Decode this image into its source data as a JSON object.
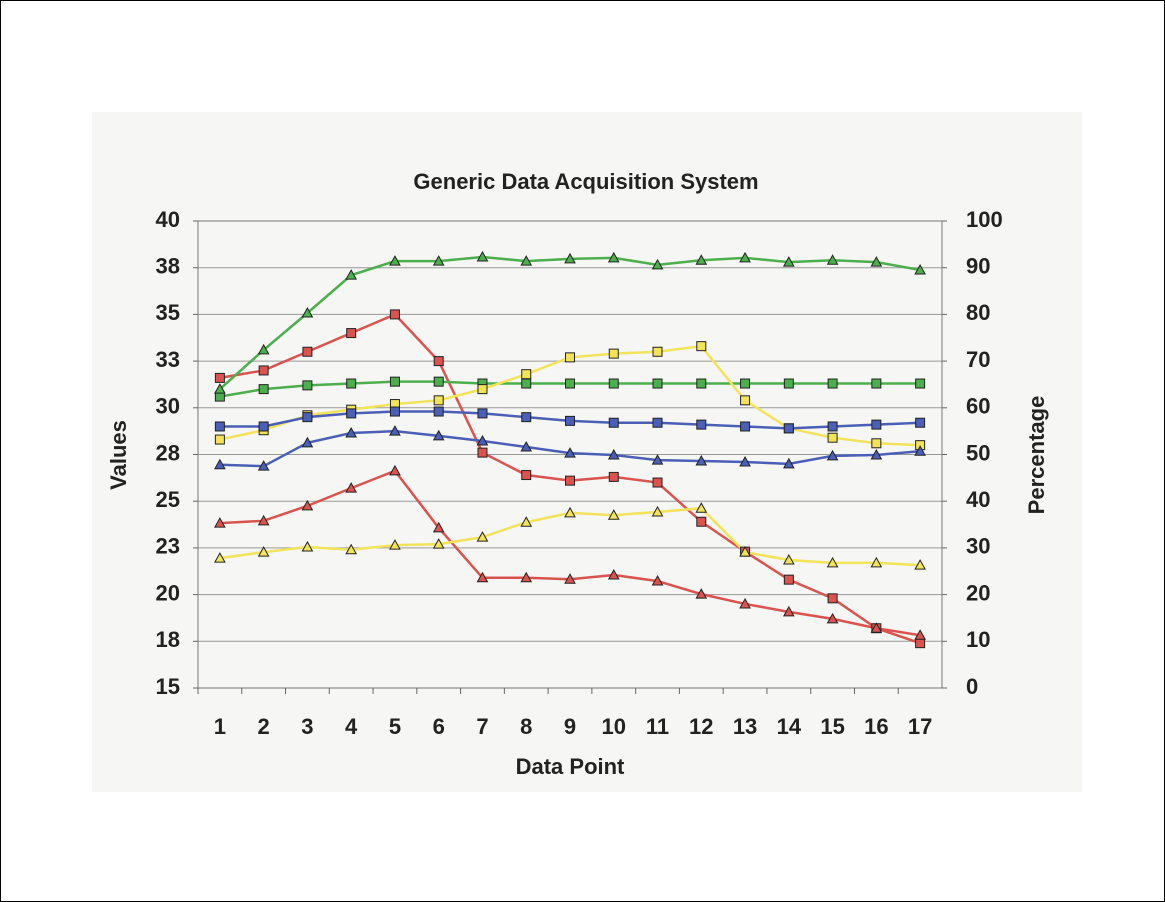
{
  "chart_data": {
    "type": "line",
    "title": "Generic Data Acquisition System",
    "x_label": "Data Point",
    "y_label": "Values",
    "y2_label": "Percentage",
    "categories": [
      "1",
      "2",
      "3",
      "4",
      "5",
      "6",
      "7",
      "8",
      "9",
      "10",
      "11",
      "12",
      "13",
      "14",
      "15",
      "16",
      "17"
    ],
    "ylim": [
      15,
      40
    ],
    "yticks": [
      15,
      {
        "value": 17.5,
        "label": "18"
      },
      20,
      {
        "value": 22.5,
        "label": "23"
      },
      25,
      {
        "value": 27.5,
        "label": "28"
      },
      30,
      {
        "value": 32.5,
        "label": "33"
      },
      35,
      {
        "value": 37.5,
        "label": "38"
      },
      40
    ],
    "y2lim": [
      0,
      100
    ],
    "y2ticks": [
      0,
      10,
      20,
      30,
      40,
      50,
      60,
      70,
      80,
      90,
      100
    ],
    "grid": true,
    "series": [
      {
        "color": "#d9534f",
        "marker": "square",
        "values": [
          31.6,
          32.0,
          33.0,
          34.0,
          35.0,
          32.5,
          27.6,
          26.4,
          26.1,
          26.3,
          26.0,
          23.9,
          22.3,
          20.8,
          19.8,
          18.2,
          17.4
        ]
      },
      {
        "color": "#4cae4c",
        "marker": "square",
        "values": [
          30.6,
          31.0,
          31.2,
          31.3,
          31.4,
          31.4,
          31.3,
          31.3,
          31.3,
          31.3,
          31.3,
          31.3,
          31.3,
          31.3,
          31.3,
          31.3,
          31.3
        ]
      },
      {
        "color": "#f3e35a",
        "marker": "square",
        "values": [
          28.3,
          28.8,
          29.6,
          29.9,
          30.2,
          30.4,
          31.0,
          31.8,
          32.7,
          32.9,
          33.0,
          33.3,
          30.4,
          28.9,
          28.4,
          28.1,
          28.0
        ]
      },
      {
        "color": "#4a5fb5",
        "marker": "square",
        "values": [
          29.0,
          29.0,
          29.5,
          29.7,
          29.8,
          29.8,
          29.7,
          29.5,
          29.3,
          29.2,
          29.2,
          29.1,
          29.0,
          28.9,
          29.0,
          29.1,
          29.2
        ]
      },
      {
        "color": "#4cae4c",
        "marker": "triangle",
        "axis": "y2",
        "values": [
          64.0,
          72.4,
          80.3,
          88.4,
          91.4,
          91.4,
          92.3,
          91.4,
          91.9,
          92.1,
          90.6,
          91.6,
          92.1,
          91.2,
          91.6,
          91.2,
          89.5
        ]
      },
      {
        "color": "#4a5fb5",
        "marker": "triangle",
        "axis": "y2",
        "values": [
          47.8,
          47.5,
          52.5,
          54.6,
          55.0,
          54.0,
          52.9,
          51.6,
          50.3,
          49.9,
          48.8,
          48.6,
          48.4,
          48.0,
          49.7,
          49.9,
          50.7
        ]
      },
      {
        "color": "#d9534f",
        "marker": "triangle",
        "axis": "y2",
        "values": [
          35.3,
          35.8,
          39.0,
          42.8,
          46.5,
          34.3,
          23.6,
          23.6,
          23.3,
          24.2,
          22.9,
          20.1,
          18.0,
          16.3,
          14.8,
          12.8,
          11.3
        ]
      },
      {
        "color": "#f3e35a",
        "marker": "triangle",
        "axis": "y2",
        "values": [
          27.8,
          29.1,
          30.2,
          29.6,
          30.6,
          30.8,
          32.3,
          35.5,
          37.5,
          37.0,
          37.7,
          38.5,
          29.1,
          27.4,
          26.8,
          26.8,
          26.3
        ]
      }
    ]
  }
}
